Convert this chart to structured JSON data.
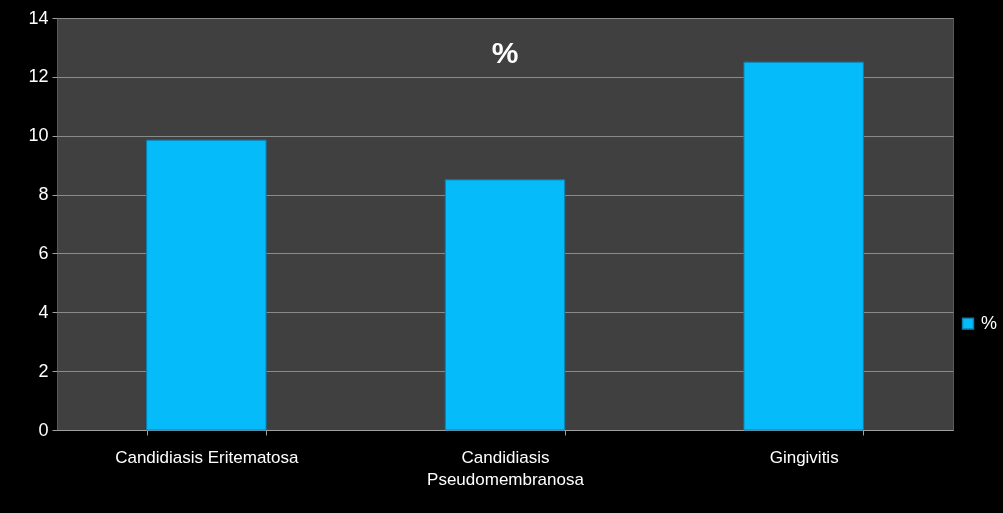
{
  "chart_data": {
    "type": "bar",
    "title": "%",
    "categories": [
      "Candidiasis Eritematosa",
      "Candidiasis Pseudomembranosa",
      "Gingivitis"
    ],
    "series": [
      {
        "name": "%",
        "color": "#05bbfa",
        "values": [
          9.85,
          8.5,
          12.5
        ]
      }
    ],
    "ylim": [
      0,
      14
    ],
    "yticks": [
      0,
      2,
      4,
      6,
      8,
      10,
      12,
      14
    ],
    "grid": "y",
    "legend": "right"
  }
}
